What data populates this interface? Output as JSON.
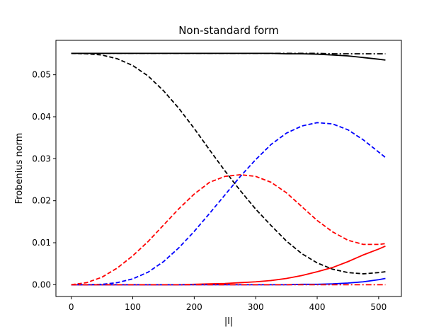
{
  "chart_data": {
    "type": "line",
    "title": "Non-standard form",
    "xlabel": "|l|",
    "ylabel": "Frobenius norm",
    "xlim": [
      -25,
      537
    ],
    "ylim": [
      -0.0028,
      0.0582
    ],
    "xticks": [
      0,
      100,
      200,
      300,
      400,
      500
    ],
    "xtick_labels": [
      "0",
      "100",
      "200",
      "300",
      "400",
      "500"
    ],
    "yticks": [
      0.0,
      0.01,
      0.02,
      0.03,
      0.04,
      0.05
    ],
    "ytick_labels": [
      "0.00",
      "0.01",
      "0.02",
      "0.03",
      "0.04",
      "0.05"
    ],
    "grid": false,
    "x": [
      0,
      25,
      50,
      75,
      100,
      125,
      150,
      175,
      200,
      225,
      250,
      275,
      300,
      325,
      350,
      375,
      400,
      425,
      450,
      475,
      500,
      511
    ],
    "series": [
      {
        "color": "#000000",
        "dash": "solid",
        "values": [
          0.0551,
          0.0551,
          0.0551,
          0.0551,
          0.0551,
          0.0551,
          0.0551,
          0.0551,
          0.0551,
          0.0551,
          0.0551,
          0.0551,
          0.0551,
          0.0551,
          0.055,
          0.055,
          0.0549,
          0.0547,
          0.0545,
          0.0541,
          0.0537,
          0.0535
        ]
      },
      {
        "color": "#000000",
        "dash": "dashdot",
        "values": [
          0.0551,
          0.0551,
          0.0551,
          0.0551,
          0.0551,
          0.0551,
          0.0551,
          0.0551,
          0.0551,
          0.0551,
          0.0551,
          0.0551,
          0.0551,
          0.0551,
          0.0551,
          0.0551,
          0.0551,
          0.055,
          0.055,
          0.055,
          0.055,
          0.055
        ]
      },
      {
        "color": "#000000",
        "dash": "dashed",
        "values": [
          0.0551,
          0.055,
          0.0547,
          0.0538,
          0.0522,
          0.0497,
          0.0462,
          0.042,
          0.0372,
          0.0321,
          0.0271,
          0.0224,
          0.018,
          0.0141,
          0.0104,
          0.0074,
          0.0052,
          0.0037,
          0.0029,
          0.0026,
          0.0029,
          0.0031
        ]
      },
      {
        "color": "#0000ff",
        "dash": "dashed",
        "values": [
          0.0,
          0.0,
          0.0001,
          0.0005,
          0.0014,
          0.003,
          0.0055,
          0.0088,
          0.0127,
          0.017,
          0.0214,
          0.0258,
          0.0298,
          0.0334,
          0.0361,
          0.0378,
          0.0386,
          0.0383,
          0.0369,
          0.0345,
          0.0316,
          0.0303
        ]
      },
      {
        "color": "#ff0000",
        "dash": "dashed",
        "values": [
          0.0,
          0.0005,
          0.0018,
          0.004,
          0.0069,
          0.0103,
          0.0142,
          0.0181,
          0.0216,
          0.0244,
          0.0258,
          0.0262,
          0.0258,
          0.0244,
          0.0219,
          0.0186,
          0.0153,
          0.0126,
          0.0106,
          0.0096,
          0.0096,
          0.0098
        ]
      },
      {
        "color": "#ff0000",
        "dash": "solid",
        "values": [
          0.0,
          0.0,
          0.0,
          0.0,
          0.0,
          0.0,
          0.0,
          0.0,
          0.0001,
          0.0002,
          0.0003,
          0.0005,
          0.0007,
          0.001,
          0.0015,
          0.0022,
          0.0031,
          0.0041,
          0.0055,
          0.0071,
          0.0085,
          0.0092
        ]
      },
      {
        "color": "#0000ff",
        "dash": "solid",
        "values": [
          0.0,
          0.0,
          0.0,
          0.0,
          0.0,
          0.0,
          0.0,
          0.0,
          0.0,
          0.0,
          0.0,
          0.0,
          0.0,
          0.0,
          0.0,
          0.0001,
          0.0001,
          0.0002,
          0.0004,
          0.0007,
          0.0012,
          0.0015
        ]
      },
      {
        "color": "#ff0000",
        "dash": "dashdot",
        "values": [
          0.0,
          0.0,
          0.0,
          0.0,
          0.0,
          0.0,
          0.0,
          0.0,
          0.0,
          0.0,
          0.0,
          0.0,
          0.0,
          0.0,
          0.0,
          0.0,
          0.0,
          0.0,
          0.0,
          0.0,
          0.0,
          0.0
        ]
      }
    ]
  }
}
